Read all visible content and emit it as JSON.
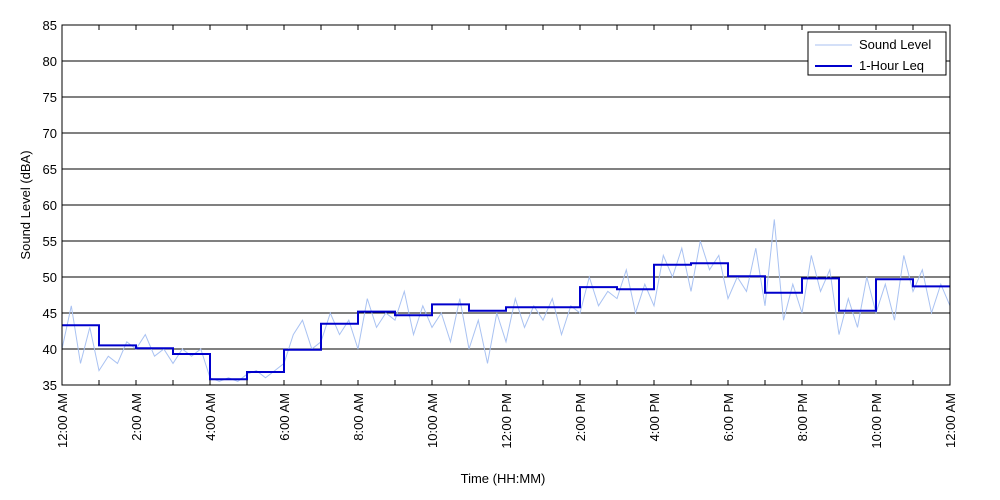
{
  "chart_data": {
    "type": "line",
    "title": "",
    "xlabel": "Time (HH:MM)",
    "ylabel": "Sound Level (dBA)",
    "xlim": [
      0,
      24
    ],
    "ylim": [
      35,
      85
    ],
    "yticks": [
      35,
      40,
      45,
      50,
      55,
      60,
      65,
      70,
      75,
      80,
      85
    ],
    "xticks": [
      {
        "hour": 0,
        "label": "12:00 AM"
      },
      {
        "hour": 2,
        "label": "2:00 AM"
      },
      {
        "hour": 4,
        "label": "4:00 AM"
      },
      {
        "hour": 6,
        "label": "6:00 AM"
      },
      {
        "hour": 8,
        "label": "8:00 AM"
      },
      {
        "hour": 10,
        "label": "10:00 AM"
      },
      {
        "hour": 12,
        "label": "12:00 PM"
      },
      {
        "hour": 14,
        "label": "2:00 PM"
      },
      {
        "hour": 16,
        "label": "4:00 PM"
      },
      {
        "hour": 18,
        "label": "6:00 PM"
      },
      {
        "hour": 20,
        "label": "8:00 PM"
      },
      {
        "hour": 22,
        "label": "10:00 PM"
      },
      {
        "hour": 24,
        "label": "12:00 AM"
      }
    ],
    "grid": "horizontal",
    "legend_position": "top-right",
    "series": [
      {
        "name": "Sound Level",
        "style": "thin-line",
        "color": "#a9c2f2",
        "x": [
          0.0,
          0.25,
          0.5,
          0.75,
          1.0,
          1.25,
          1.5,
          1.75,
          2.0,
          2.25,
          2.5,
          2.75,
          3.0,
          3.25,
          3.5,
          3.75,
          4.0,
          4.25,
          4.5,
          4.75,
          5.0,
          5.25,
          5.5,
          5.75,
          6.0,
          6.25,
          6.5,
          6.75,
          7.0,
          7.25,
          7.5,
          7.75,
          8.0,
          8.25,
          8.5,
          8.75,
          9.0,
          9.25,
          9.5,
          9.75,
          10.0,
          10.25,
          10.5,
          10.75,
          11.0,
          11.25,
          11.5,
          11.75,
          12.0,
          12.25,
          12.5,
          12.75,
          13.0,
          13.25,
          13.5,
          13.75,
          14.0,
          14.25,
          14.5,
          14.75,
          15.0,
          15.25,
          15.5,
          15.75,
          16.0,
          16.25,
          16.5,
          16.75,
          17.0,
          17.25,
          17.5,
          17.75,
          18.0,
          18.25,
          18.5,
          18.75,
          19.0,
          19.25,
          19.5,
          19.75,
          20.0,
          20.25,
          20.5,
          20.75,
          21.0,
          21.25,
          21.5,
          21.75,
          22.0,
          22.25,
          22.5,
          22.75,
          23.0,
          23.25,
          23.5,
          23.75,
          24.0
        ],
        "values": [
          40,
          46,
          38,
          43,
          37,
          39,
          38,
          41,
          40,
          42,
          39,
          40,
          38,
          40,
          39,
          40,
          36,
          35.5,
          36,
          35.5,
          36.5,
          37,
          36,
          37,
          38,
          42,
          44,
          40,
          41,
          45,
          42,
          44,
          40,
          47,
          43,
          45,
          44,
          48,
          42,
          46,
          43,
          45,
          41,
          47,
          40,
          44,
          38,
          45,
          41,
          47,
          43,
          46,
          44,
          47,
          42,
          46,
          45,
          50,
          46,
          48,
          47,
          51,
          45,
          49,
          46,
          53,
          50,
          54,
          48,
          55,
          51,
          53,
          47,
          50,
          48,
          54,
          46,
          58,
          44,
          49,
          45,
          53,
          48,
          51,
          42,
          47,
          43,
          50,
          45,
          49,
          44,
          53,
          48,
          51,
          45,
          49,
          46
        ]
      },
      {
        "name": "1-Hour Leq",
        "style": "step",
        "color": "#0000cc",
        "hours": [
          0,
          1,
          2,
          3,
          4,
          5,
          6,
          7,
          8,
          9,
          10,
          11,
          12,
          13,
          14,
          15,
          16,
          17,
          18,
          19,
          20,
          21,
          22,
          23
        ],
        "values": [
          43.3,
          40.5,
          40.1,
          39.3,
          35.8,
          36.8,
          39.9,
          43.5,
          45.2,
          44.7,
          46.2,
          45.3,
          45.8,
          45.8,
          48.6,
          48.3,
          51.7,
          51.9,
          50.1,
          47.8,
          49.8,
          45.3,
          49.7,
          48.7
        ]
      }
    ]
  }
}
